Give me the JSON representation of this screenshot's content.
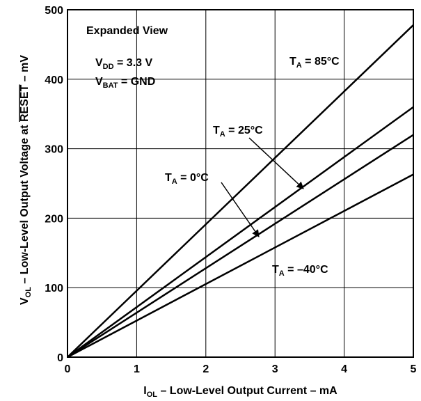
{
  "chart_data": {
    "type": "line",
    "xlabel": "I",
    "xlabel_sub": "OL",
    "xlabel_rest": " – Low-Level Output Current – mA",
    "ylabel": "V",
    "ylabel_sub": "OL",
    "ylabel_mid": " – Low-Level Output Voltage at ",
    "ylabel_over": "RESET",
    "ylabel_rest": " – mV",
    "xlim": [
      0,
      5
    ],
    "ylim": [
      0,
      500
    ],
    "xticks": [
      "0",
      "1",
      "2",
      "3",
      "4",
      "5"
    ],
    "yticks": [
      "0",
      "100",
      "200",
      "300",
      "400",
      "500"
    ],
    "grid": true,
    "series": [
      {
        "name": "T_A = 85°C",
        "x": [
          0,
          5
        ],
        "y": [
          0,
          478
        ]
      },
      {
        "name": "T_A = 25°C",
        "x": [
          0,
          5
        ],
        "y": [
          0,
          360
        ]
      },
      {
        "name": "T_A = 0°C",
        "x": [
          0,
          5
        ],
        "y": [
          0,
          320
        ]
      },
      {
        "name": "T_A = –40°C",
        "x": [
          0,
          5
        ],
        "y": [
          0,
          263
        ]
      }
    ],
    "annotations": {
      "view": "Expanded View",
      "vdd": {
        "main": "V",
        "sub": "DD",
        "rest": " = 3.3 V"
      },
      "vbat": {
        "main": "V",
        "sub": "BAT",
        "rest": " = GND"
      },
      "t85": {
        "main": "T",
        "sub": "A",
        "rest": " = 85°C"
      },
      "t25": {
        "main": "T",
        "sub": "A",
        "rest": " = 25°C"
      },
      "t0": {
        "main": "T",
        "sub": "A",
        "rest": " = 0°C"
      },
      "tm40": {
        "main": "T",
        "sub": "A",
        "rest": " = –40°C"
      }
    }
  }
}
